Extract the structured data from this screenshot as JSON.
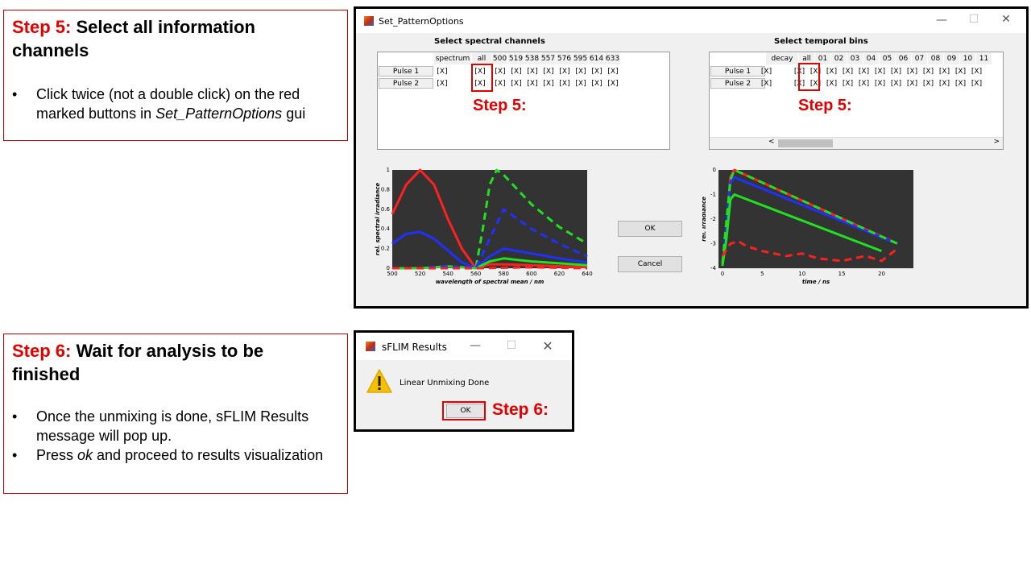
{
  "step5": {
    "heading_step": "Step 5:",
    "heading_text": " Select all information channels",
    "bullets": [
      {
        "pre": "Click twice (not a double click) on the red marked buttons in ",
        "em": "Set_PatternOptions",
        "post": " gui"
      }
    ]
  },
  "step6": {
    "heading_step": "Step 6:",
    "heading_text": " Wait for analysis to be finished",
    "bullets": [
      {
        "pre": "Once the unmixing  is done, sFLIM Results message will pop up.",
        "em": "",
        "post": ""
      },
      {
        "pre": "Press ",
        "em": "ok",
        "post": " and proceed to results visualization"
      }
    ]
  },
  "pattern_window": {
    "title": "Set_PatternOptions",
    "spectral_label": "Select spectral channels",
    "temporal_label": "Select temporal bins",
    "spectral_columns": [
      "spectrum",
      "all",
      "500",
      "519",
      "538",
      "557",
      "576",
      "595",
      "614",
      "633"
    ],
    "temporal_columns": [
      "decay",
      "all",
      "01",
      "02",
      "03",
      "04",
      "05",
      "06",
      "07",
      "08",
      "09",
      "10",
      "11"
    ],
    "rows": [
      "Pulse 1",
      "Pulse 2"
    ],
    "cell_value": "[X]",
    "ok_label": "OK",
    "cancel_label": "Cancel",
    "step_annotation": "Step 5:"
  },
  "results_window": {
    "title": "sFLIM Results",
    "message": "Linear Unmixing Done",
    "ok_label": "OK",
    "step_annotation": "Step 6:"
  },
  "chart_data": [
    {
      "type": "line",
      "xlabel": "wavelength of spectral mean / nm",
      "ylabel": "rel. spectral irradiance",
      "xlim": [
        500,
        640
      ],
      "ylim": [
        0,
        1
      ],
      "xticks": [
        500,
        520,
        540,
        560,
        580,
        600,
        620,
        640
      ],
      "yticks": [
        0,
        0.2,
        0.4,
        0.6,
        0.8,
        1
      ],
      "background": "#333333",
      "series": [
        {
          "color": "#ff2020",
          "dash": false,
          "x": [
            500,
            510,
            520,
            530,
            540,
            550,
            560,
            570,
            580,
            600,
            620,
            640
          ],
          "y": [
            0.55,
            0.85,
            1.0,
            0.85,
            0.5,
            0.2,
            0.0,
            0.04,
            0.04,
            0.03,
            0.02,
            0.01
          ]
        },
        {
          "color": "#2030ff",
          "dash": false,
          "x": [
            500,
            510,
            520,
            530,
            540,
            550,
            560,
            570,
            580,
            600,
            620,
            640
          ],
          "y": [
            0.25,
            0.35,
            0.37,
            0.3,
            0.18,
            0.06,
            0.0,
            0.12,
            0.2,
            0.15,
            0.1,
            0.06
          ]
        },
        {
          "color": "#20e020",
          "dash": false,
          "x": [
            500,
            520,
            540,
            560,
            570,
            580,
            600,
            620,
            640
          ],
          "y": [
            0.0,
            0.0,
            0.02,
            0.0,
            0.07,
            0.1,
            0.07,
            0.05,
            0.03
          ]
        },
        {
          "color": "#20e020",
          "dash": true,
          "x": [
            500,
            520,
            540,
            560,
            565,
            570,
            575,
            580,
            600,
            620,
            640
          ],
          "y": [
            0.0,
            0.0,
            0.02,
            0.0,
            0.4,
            0.85,
            1.0,
            0.95,
            0.65,
            0.42,
            0.25
          ]
        },
        {
          "color": "#2030ff",
          "dash": true,
          "x": [
            500,
            520,
            540,
            560,
            570,
            580,
            600,
            620,
            640
          ],
          "y": [
            0.0,
            0.0,
            0.02,
            0.0,
            0.3,
            0.6,
            0.4,
            0.25,
            0.12
          ]
        },
        {
          "color": "#ff2020",
          "dash": true,
          "x": [
            500,
            560,
            600,
            640
          ],
          "y": [
            0.0,
            0.0,
            0.01,
            0.0
          ]
        }
      ]
    },
    {
      "type": "line",
      "xlabel": "time / ns",
      "ylabel": "rel. irradiance",
      "xlim": [
        -0.5,
        24
      ],
      "ylim": [
        -4,
        0
      ],
      "xticks": [
        0,
        5,
        10,
        15,
        20
      ],
      "yticks": [
        0,
        -1,
        -2,
        -3,
        -4
      ],
      "background": "#333333",
      "series": [
        {
          "color": "#ff2020",
          "dash": false,
          "x": [
            0,
            0.5,
            1,
            1.5,
            22
          ],
          "y": [
            -3.9,
            -2.5,
            -0.3,
            0.0,
            -3.0
          ]
        },
        {
          "color": "#2030ff",
          "dash": false,
          "x": [
            0,
            0.5,
            1,
            1.5,
            22
          ],
          "y": [
            -3.9,
            -2.2,
            -0.5,
            -0.3,
            -3.0
          ]
        },
        {
          "color": "#20e020",
          "dash": false,
          "x": [
            0,
            0.5,
            1,
            1.5,
            20
          ],
          "y": [
            -3.9,
            -2.8,
            -1.2,
            -1.0,
            -3.3
          ]
        },
        {
          "color": "#20e020",
          "dash": true,
          "x": [
            0,
            1,
            1.5,
            22
          ],
          "y": [
            -3.8,
            -0.4,
            0.0,
            -3.0
          ]
        },
        {
          "color": "#ff2020",
          "dash": true,
          "x": [
            0,
            1,
            2,
            3,
            5,
            8,
            10,
            12,
            15,
            18,
            20,
            22
          ],
          "y": [
            -3.5,
            -3.0,
            -2.9,
            -3.1,
            -3.3,
            -3.5,
            -3.4,
            -3.6,
            -3.7,
            -3.5,
            -3.7,
            -3.2
          ]
        }
      ]
    }
  ]
}
